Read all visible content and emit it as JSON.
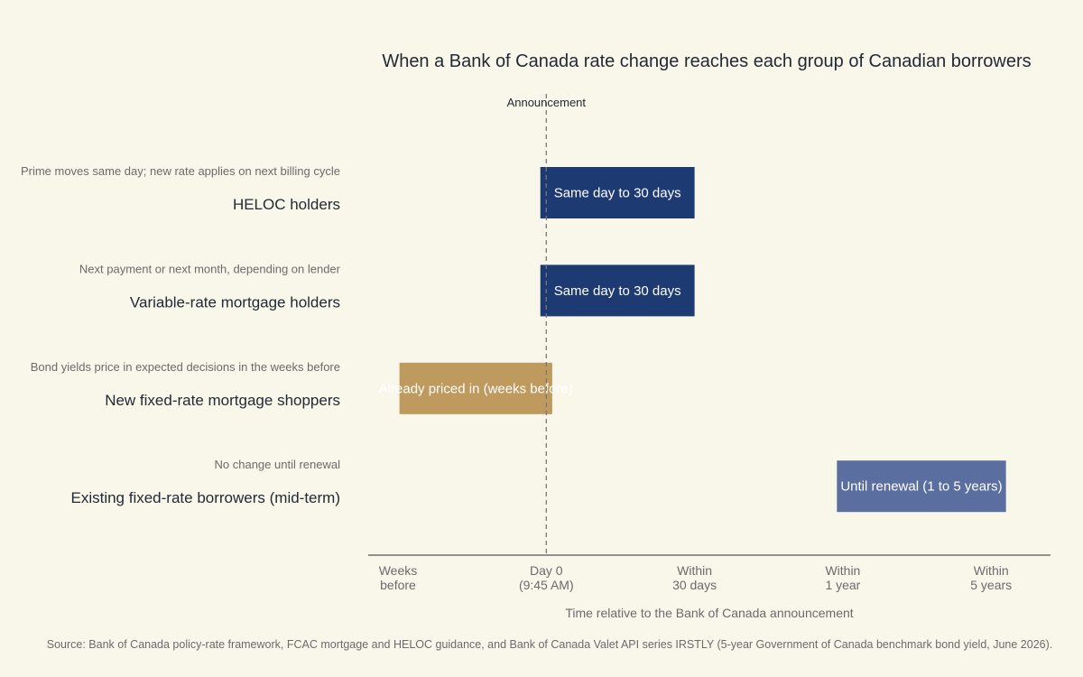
{
  "chart_data": {
    "type": "bar",
    "orientation": "horizontal",
    "title": "When a Bank of Canada rate change reaches each group of Canadian borrowers",
    "xlabel": "Time relative to the Bank of Canada announcement",
    "x_ticks": [
      {
        "value": 0,
        "lines": [
          "Weeks",
          "before"
        ]
      },
      {
        "value": 1,
        "lines": [
          "Day 0",
          "(9:45 AM)"
        ]
      },
      {
        "value": 2,
        "lines": [
          "Within",
          "30 days"
        ]
      },
      {
        "value": 3,
        "lines": [
          "Within",
          "1 year"
        ]
      },
      {
        "value": 4,
        "lines": [
          "Within",
          "5 years"
        ]
      }
    ],
    "xlim": [
      -0.2,
      4.4
    ],
    "annotation": {
      "label": "Announcement",
      "x": 1
    },
    "categories": [
      {
        "name": "HELOC holders",
        "note": "Prime moves same day; new rate applies on next billing cycle",
        "start": 0.96,
        "end": 2.0,
        "label": "Same day to 30 days",
        "color": "#1e3a72"
      },
      {
        "name": "Variable-rate mortgage holders",
        "note": "Next payment or next month, depending on lender",
        "start": 0.96,
        "end": 2.0,
        "label": "Same day to 30 days",
        "color": "#1e3a72"
      },
      {
        "name": "New fixed-rate mortgage shoppers",
        "note": "Bond yields price in expected decisions in the weeks before",
        "start": 0.01,
        "end": 1.04,
        "label": "Already priced in (weeks before)",
        "color": "#be9a5f"
      },
      {
        "name": "Existing fixed-rate borrowers (mid-term)",
        "note": "No change until renewal",
        "start": 2.96,
        "end": 4.1,
        "label": "Until renewal (1 to 5 years)",
        "color": "#5a6fa0"
      }
    ],
    "source": "Source: Bank of Canada policy-rate framework, FCAC mortgage and HELOC guidance, and Bank of Canada Valet API series IRSTLY (5-year Government of Canada benchmark bond yield, June 2026)."
  }
}
